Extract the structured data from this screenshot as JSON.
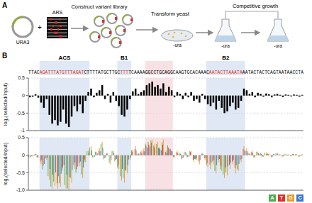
{
  "panel_a": {
    "label": "A",
    "plasmid": "URA3",
    "insert": "ARS",
    "plus": "+",
    "steps": [
      "Construct variant library",
      "Transform yeast",
      "Competitive growth"
    ],
    "medium": "-ura"
  },
  "panel_b": {
    "label": "B",
    "sequence": [
      {
        "text": "TTAC",
        "color": "#000000"
      },
      {
        "text": "AGATTTATGTTTAGAT",
        "color": "#e0302a"
      },
      {
        "text": "CTTTTATGCTTGC",
        "color": "#000000"
      },
      {
        "text": "TTT",
        "color": "#e0302a"
      },
      {
        "text": "TCAAAAGGCCTGCAGGCAAGTGCACAAAC",
        "color": "#000000"
      },
      {
        "text": "AATACTTAAATA",
        "color": "#e0302a"
      },
      {
        "text": "AATACTACTCAGTAATAACCTA",
        "color": "#000000"
      }
    ],
    "regions": [
      {
        "name": "ACS",
        "start": 4,
        "end": 21,
        "color": "#c9d9ec"
      },
      {
        "name": "B1",
        "start": 32,
        "end": 36,
        "color": "#c9d9ec"
      },
      {
        "start": 42,
        "end": 51,
        "color": "#f4cdd3"
      },
      {
        "name": "B2",
        "start": 64,
        "end": 77,
        "color": "#c9d9ec"
      }
    ]
  },
  "chart_data": [
    {
      "type": "bar",
      "y_label": "log₂(selected/input)",
      "x": [
        0,
        1,
        2,
        3,
        4,
        5,
        6,
        7,
        8,
        9,
        10,
        11,
        12,
        13,
        14,
        15,
        16,
        17,
        18,
        19,
        20,
        21,
        22,
        23,
        24,
        25,
        26,
        27,
        28,
        29,
        30,
        31,
        32,
        33,
        34,
        35,
        36,
        37,
        38,
        39,
        40,
        41,
        42,
        43,
        44,
        45,
        46,
        47,
        48,
        49,
        50,
        51,
        52,
        53,
        54,
        55,
        56,
        57,
        58,
        59,
        60,
        61,
        62,
        63,
        64,
        65,
        66,
        67,
        68,
        69,
        70,
        71,
        72,
        73,
        74,
        75,
        76,
        77,
        78,
        79,
        80,
        81,
        82,
        83,
        84,
        85,
        86,
        87,
        88,
        89,
        90,
        91,
        92,
        93,
        94,
        95,
        96,
        97,
        98
      ],
      "values": [
        -0.05,
        -0.03,
        0.04,
        -0.06,
        -0.2,
        -0.35,
        -0.1,
        -0.55,
        -0.8,
        -0.7,
        -0.85,
        -0.75,
        -0.4,
        -0.8,
        -0.9,
        -0.6,
        -0.3,
        -0.45,
        -0.25,
        -0.5,
        -0.15,
        0.1,
        0.2,
        -0.05,
        0.08,
        0.15,
        0.3,
        -0.1,
        0.05,
        -0.2,
        0.1,
        -0.15,
        -0.3,
        -0.55,
        -0.6,
        -0.4,
        -0.1,
        0.12,
        0.2,
        0.05,
        0.1,
        0.15,
        0.3,
        0.35,
        0.4,
        0.25,
        0.3,
        0.2,
        0.35,
        0.1,
        0.25,
        0.15,
        -0.05,
        0.1,
        0.05,
        -0.1,
        0.08,
        -0.05,
        0.1,
        -0.15,
        -0.1,
        -0.2,
        0.05,
        -0.1,
        -0.25,
        -0.3,
        -0.2,
        -0.4,
        -0.15,
        -0.35,
        -0.5,
        -0.45,
        -0.3,
        -0.2,
        -0.4,
        -0.35,
        -0.15,
        0.2,
        0.15,
        0.05,
        0.1,
        -0.05,
        0.08,
        0.05,
        -0.03,
        0.06,
        0.04,
        -0.05,
        0.03,
        0.05,
        0.02,
        -0.04,
        0.03,
        0.02,
        -0.02,
        0.03,
        0.02,
        -0.03,
        0.02
      ],
      "color": "#000000",
      "xlim": [
        -0.5,
        98.5
      ],
      "ylim": [
        -1,
        0.5
      ],
      "yticks": [
        0.5,
        0,
        -0.5,
        -1
      ],
      "grid": true,
      "tick_labels": "y"
    },
    {
      "type": "bar",
      "y_label": "log₂(selected/input)",
      "x": [
        0,
        1,
        2,
        3,
        4,
        5,
        6,
        7,
        8,
        9,
        10,
        11,
        12,
        13,
        14,
        15,
        16,
        17,
        18,
        19,
        20,
        21,
        22,
        23,
        24,
        25,
        26,
        27,
        28,
        29,
        30,
        31,
        32,
        33,
        34,
        35,
        36,
        37,
        38,
        39,
        40,
        41,
        42,
        43,
        44,
        45,
        46,
        47,
        48,
        49,
        50,
        51,
        52,
        53,
        54,
        55,
        56,
        57,
        58,
        59,
        60,
        61,
        62,
        63,
        64,
        65,
        66,
        67,
        68,
        69,
        70,
        71,
        72,
        73,
        74,
        75,
        76,
        77,
        78,
        79,
        80,
        81,
        82,
        83,
        84,
        85,
        86,
        87,
        88,
        89,
        90,
        91,
        92,
        93,
        94,
        95,
        96,
        97,
        98
      ],
      "series": [
        {
          "name": "A",
          "color": "#4cae4c",
          "values": [
            -0.06,
            -0.03,
            null,
            -0.07,
            null,
            -0.4,
            null,
            -0.6,
            -0.9,
            -0.75,
            null,
            -0.8,
            -0.45,
            -0.85,
            -0.95,
            -0.65,
            null,
            -0.5,
            null,
            -0.55,
            -0.2,
            0.12,
            0.22,
            -0.06,
            0.1,
            null,
            0.32,
            -0.12,
            0.06,
            -0.22,
            0.12,
            -0.18,
            -0.35,
            -0.6,
            -0.65,
            -0.45,
            -0.12,
            0.14,
            null,
            null,
            null,
            null,
            0.33,
            0.38,
            0.42,
            0.28,
            0.32,
            0.22,
            0.38,
            null,
            0.28,
            0.18,
            -0.06,
            null,
            null,
            -0.12,
            0.1,
            -0.06,
            0.12,
            null,
            -0.12,
            null,
            null,
            null,
            -0.28,
            null,
            null,
            -0.45,
            null,
            -0.4,
            -0.55,
            -0.5,
            null,
            null,
            null,
            -0.4,
            null,
            null,
            null,
            0.06,
            null,
            -0.06,
            0.1,
            null,
            -0.04,
            0.07,
            0.05,
            null,
            0.04,
            0.06,
            null,
            null,
            0.04,
            null,
            null,
            0.04,
            0.03,
            -0.04,
            null
          ]
        },
        {
          "name": "T",
          "color": "#e0302a",
          "values": [
            null,
            null,
            0.03,
            -0.05,
            -0.18,
            -0.3,
            -0.09,
            null,
            null,
            null,
            -0.8,
            null,
            -0.35,
            null,
            null,
            null,
            -0.28,
            -0.4,
            -0.22,
            null,
            -0.12,
            null,
            null,
            null,
            null,
            0.13,
            null,
            -0.08,
            0.04,
            null,
            null,
            -0.13,
            -0.27,
            null,
            null,
            null,
            null,
            0.1,
            0.18,
            0.04,
            0.09,
            0.13,
            0.27,
            0.3,
            0.36,
            0.22,
            null,
            0.18,
            0.3,
            0.09,
            0.22,
            0.13,
            -0.04,
            0.09,
            0.04,
            -0.09,
            null,
            -0.04,
            0.09,
            -0.13,
            -0.09,
            -0.18,
            0.04,
            -0.09,
            -0.22,
            -0.27,
            -0.18,
            null,
            -0.13,
            -0.3,
            null,
            null,
            -0.27,
            -0.18,
            -0.36,
            null,
            -0.13,
            0.18,
            0.13,
            null,
            0.09,
            -0.04,
            null,
            0.04,
            -0.03,
            null,
            0.03,
            -0.04,
            0.03,
            null,
            0.02,
            -0.03,
            null,
            0.02,
            -0.02,
            0.03,
            0.02,
            null,
            0.02
          ]
        },
        {
          "name": "G",
          "color": "#f09a28",
          "values": [
            -0.07,
            -0.04,
            0.05,
            -0.08,
            -0.26,
            null,
            -0.13,
            -0.7,
            -0.95,
            -0.88,
            -0.95,
            -0.9,
            null,
            -0.95,
            -1,
            -0.78,
            -0.39,
            null,
            -0.32,
            -0.65,
            -0.2,
            0.13,
            0.26,
            -0.07,
            0.1,
            0.2,
            0.39,
            null,
            0.07,
            -0.26,
            0.13,
            null,
            -0.39,
            -0.72,
            -0.78,
            -0.52,
            -0.13,
            0.16,
            0.26,
            0.07,
            0.13,
            0.2,
            null,
            null,
            0.45,
            0.33,
            0.39,
            null,
            0.45,
            0.13,
            null,
            null,
            -0.07,
            0.13,
            0.07,
            null,
            0.1,
            null,
            0.13,
            -0.2,
            -0.13,
            -0.26,
            0.07,
            -0.13,
            -0.33,
            -0.39,
            -0.26,
            -0.52,
            -0.2,
            -0.45,
            -0.65,
            -0.58,
            -0.39,
            -0.26,
            -0.52,
            -0.45,
            -0.2,
            0.26,
            0.2,
            0.07,
            0.13,
            -0.07,
            0.1,
            0.07,
            -0.04,
            0.08,
            0.05,
            -0.07,
            null,
            0.07,
            0.03,
            -0.05,
            0.04,
            0.03,
            -0.03,
            0.04,
            0.03,
            -0.04,
            0.03
          ]
        },
        {
          "name": "C",
          "color": "#3a78d0",
          "values": [
            -0.04,
            -0.02,
            0.03,
            null,
            -0.14,
            -0.25,
            -0.07,
            -0.39,
            -0.56,
            -0.49,
            -0.6,
            -0.53,
            -0.28,
            -0.56,
            -0.63,
            -0.42,
            -0.21,
            -0.32,
            -0.18,
            -0.35,
            null,
            0.07,
            0.14,
            -0.04,
            0.06,
            0.11,
            0.21,
            -0.07,
            null,
            -0.14,
            0.07,
            -0.11,
            null,
            -0.39,
            -0.42,
            -0.28,
            -0.07,
            null,
            0.14,
            0.04,
            0.07,
            0.11,
            0.21,
            0.25,
            null,
            null,
            0.21,
            0.14,
            null,
            0.07,
            0.18,
            0.11,
            null,
            0.07,
            0.04,
            -0.07,
            0.06,
            -0.04,
            null,
            -0.11,
            null,
            -0.14,
            0.04,
            -0.07,
            null,
            -0.21,
            -0.14,
            -0.28,
            -0.11,
            null,
            -0.35,
            -0.32,
            -0.21,
            -0.14,
            -0.28,
            -0.25,
            -0.11,
            0.14,
            0.11,
            0.04,
            0.07,
            null,
            0.06,
            0.04,
            null,
            0.04,
            null,
            -0.04,
            0.02,
            0.04,
            0.01,
            -0.03,
            0.02,
            0.01,
            -0.01,
            null,
            null,
            -0.02,
            0.01
          ]
        }
      ],
      "xlim": [
        -0.5,
        98.5
      ],
      "ylim": [
        -1,
        0.5
      ],
      "yticks": [
        0.5,
        0,
        -0.5,
        {
          "value": -1,
          "label": "-1.0"
        }
      ],
      "grid": true,
      "tick_labels": "y",
      "legend": "lower right"
    }
  ]
}
